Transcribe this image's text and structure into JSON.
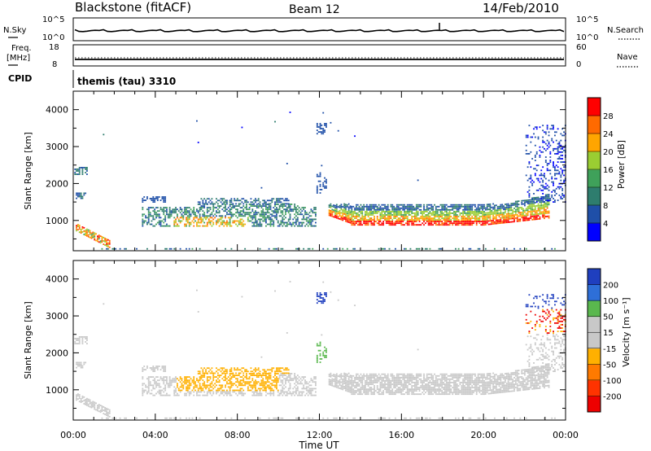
{
  "header": {
    "station": "Blackstone (fitACF)",
    "beam": "Beam 12",
    "date": "14/Feb/2010"
  },
  "top_panels": {
    "noise": {
      "left_label": "N.Sky",
      "right_label": "N.Search",
      "left_ticks": [
        "10^5",
        "10^0"
      ],
      "right_ticks": [
        "10^5",
        "10^0"
      ]
    },
    "freq": {
      "left_label_1": "Freq.",
      "left_label_2": "[MHz]",
      "right_label": "Nave",
      "left_ticks": [
        "18",
        "8"
      ],
      "right_ticks": [
        "60",
        "0"
      ]
    },
    "cpid": {
      "label": "CPID",
      "value": "themis (tau) 3310"
    }
  },
  "chart_data": [
    {
      "type": "heatmap",
      "name": "power",
      "xlabel": "",
      "ylabel": "Slant Range [km]",
      "x_range_hours": [
        0,
        24
      ],
      "ylim": [
        180,
        4500
      ],
      "y_ticks": [
        "1000",
        "2000",
        "3000",
        "4000"
      ],
      "x_ticks": [
        "00:00",
        "04:00",
        "08:00",
        "12:00",
        "16:00",
        "20:00",
        "00:00"
      ],
      "colorbar": {
        "label": "Power [dB]",
        "ticks": [
          "4",
          "8",
          "12",
          "16",
          "20",
          "24",
          "28"
        ],
        "colors": [
          "#0000ff",
          "#1f4fa8",
          "#2e7d6e",
          "#3fa15a",
          "#9acd32",
          "#ffa500",
          "#ff6a00",
          "#ff0000"
        ]
      }
    },
    {
      "type": "heatmap",
      "name": "velocity",
      "xlabel": "Time UT",
      "ylabel": "Slant Range [km]",
      "x_range_hours": [
        0,
        24
      ],
      "ylim": [
        180,
        4500
      ],
      "y_ticks": [
        "1000",
        "2000",
        "3000",
        "4000"
      ],
      "x_ticks": [
        "00:00",
        "04:00",
        "08:00",
        "12:00",
        "16:00",
        "20:00",
        "00:00"
      ],
      "colorbar": {
        "label": "Velocity [m s⁻¹]",
        "ticks": [
          "200",
          "100",
          "50",
          "15",
          "-15",
          "-50",
          "-100",
          "-200"
        ],
        "colors": [
          "#1f3fbf",
          "#2e6fd8",
          "#5ab84e",
          "#c8c8c8",
          "#c8c8c8",
          "#ffb000",
          "#ff7a00",
          "#ff3300",
          "#ee0000"
        ]
      }
    }
  ]
}
